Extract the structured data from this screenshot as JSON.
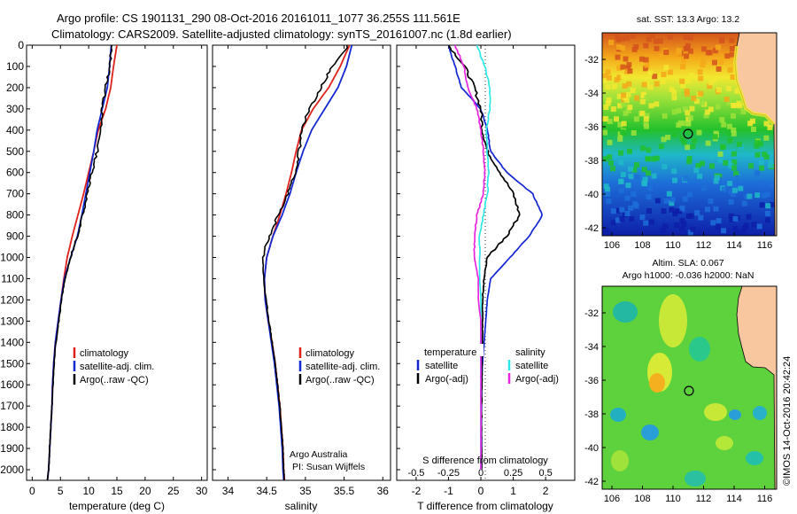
{
  "header": {
    "line1": "Argo profile: CS 1901131_290 08-Oct-2016 20161011_1077 36.255S 111.561E",
    "line2": "Climatology: CARS2009. Satellite-adjusted climatology: synTS_20161007.nc (1.8d earlier)"
  },
  "panel_temp": {
    "xlabel": "temperature (deg C)",
    "xticks": [
      "0",
      "5",
      "10",
      "15",
      "20",
      "25",
      "30"
    ],
    "yticks": [
      "0",
      "100",
      "200",
      "300",
      "400",
      "500",
      "600",
      "700",
      "800",
      "900",
      "1000",
      "1100",
      "1200",
      "1300",
      "1400",
      "1500",
      "1600",
      "1700",
      "1800",
      "1900",
      "2000"
    ],
    "legend": [
      "climatology",
      "satellite-adj. clim.",
      "Argo(..raw -QC)"
    ]
  },
  "panel_sal": {
    "xlabel": "salinity",
    "xticks": [
      "34",
      "34.5",
      "35",
      "35.5",
      "36"
    ],
    "legend": [
      "climatology",
      "satellite-adj. clim.",
      "Argo(..raw -QC)"
    ],
    "credit1": "Argo Australia",
    "credit2": "PI: Susan Wijffels"
  },
  "panel_diff": {
    "xlabel": "T difference from climatology",
    "top_label": "S difference from climatology",
    "sticks": [
      "-0.5",
      "-0.25",
      "0",
      "0.25",
      "0.5"
    ],
    "tticks": [
      "-2",
      "-1",
      "0",
      "1",
      "2"
    ],
    "legend_t_title": "temperature",
    "legend_s_title": "salinity",
    "legend_t": [
      "satellite",
      "Argo(-adj)"
    ],
    "legend_s": [
      "satellite",
      "Argo(-adj)"
    ]
  },
  "map_sst": {
    "title": "sat. SST: 13.3  Argo: 13.2",
    "xticks": [
      "106",
      "108",
      "110",
      "112",
      "114",
      "116"
    ],
    "yticks": [
      "-32",
      "-34",
      "-36",
      "-38",
      "-40",
      "-42"
    ]
  },
  "map_sla": {
    "title1": "Altim. SLA: 0.067",
    "title2": "Argo h1000: -0.036 h2000: NaN",
    "xticks": [
      "106",
      "108",
      "110",
      "112",
      "114",
      "116"
    ],
    "yticks": [
      "-32",
      "-34",
      "-36",
      "-38",
      "-40",
      "-42"
    ]
  },
  "stamp": "©IMOS 14-Oct-2016 20:42:24",
  "colors": {
    "climatology": "#e0201a",
    "satellite": "#1428d2",
    "argo": "#000000",
    "sal_sat": "#2ee8e8",
    "sal_argo": "#e826e0",
    "land": "#f8c7a0"
  },
  "chart_data": [
    {
      "type": "line",
      "xlabel": "temperature (deg C)",
      "ylabel": "",
      "xlim": [
        -1,
        31
      ],
      "ylim": [
        2050,
        0
      ],
      "series": [
        {
          "name": "climatology",
          "x": [
            15,
            14.4,
            13.9,
            13,
            11.7,
            10.9,
            10,
            9.1,
            8.1,
            7.1,
            6.2,
            5.6,
            5.1,
            4.6,
            4.1,
            3.8,
            3.6,
            3.5,
            3.3,
            3.1,
            2.9,
            2.7
          ],
          "y": [
            0,
            100,
            200,
            300,
            400,
            500,
            600,
            700,
            800,
            900,
            1000,
            1100,
            1200,
            1300,
            1400,
            1500,
            1600,
            1700,
            1800,
            1900,
            2000,
            2050
          ]
        },
        {
          "name": "satellite-adj. clim.",
          "x": [
            14,
            13.7,
            13.3,
            12.4,
            11.5,
            10.9,
            10.2,
            9.5,
            8.8,
            8,
            6.8,
            5.7,
            5.1,
            4.6,
            4.1,
            3.8,
            3.6,
            3.5,
            3.3,
            3.1,
            2.9,
            2.7
          ],
          "y": [
            0,
            100,
            200,
            300,
            400,
            500,
            600,
            700,
            800,
            900,
            1000,
            1100,
            1200,
            1300,
            1400,
            1500,
            1600,
            1700,
            1800,
            1900,
            2000,
            2050
          ]
        },
        {
          "name": "Argo(..raw -QC)",
          "x": [
            14,
            13.8,
            13,
            12.4,
            12.1,
            11.5,
            10.6,
            9.8,
            8.9,
            8,
            6.8,
            5.8,
            5.2,
            4.7,
            4.2,
            3.9,
            3.7,
            3.5,
            3.3,
            3.1,
            2.9,
            2.7
          ],
          "y": [
            0,
            100,
            200,
            300,
            400,
            500,
            600,
            700,
            800,
            900,
            1000,
            1100,
            1200,
            1300,
            1400,
            1500,
            1600,
            1700,
            1800,
            1900,
            2000,
            2050
          ]
        }
      ]
    },
    {
      "type": "line",
      "xlabel": "salinity",
      "ylabel": "",
      "xlim": [
        33.8,
        36.1
      ],
      "ylim": [
        2050,
        0
      ],
      "series": [
        {
          "name": "climatology",
          "x": [
            35.57,
            35.45,
            35.3,
            35.1,
            34.95,
            34.88,
            34.82,
            34.75,
            34.67,
            34.58,
            34.5,
            34.47,
            34.48,
            34.52,
            34.57,
            34.61,
            34.64,
            34.67,
            34.69,
            34.71,
            34.72,
            34.73
          ],
          "y": [
            0,
            100,
            200,
            300,
            400,
            500,
            600,
            700,
            800,
            900,
            1000,
            1100,
            1200,
            1300,
            1400,
            1500,
            1600,
            1700,
            1800,
            1900,
            2000,
            2050
          ]
        },
        {
          "name": "satellite-adj. clim.",
          "x": [
            35.6,
            35.53,
            35.42,
            35.25,
            35.08,
            34.97,
            34.88,
            34.8,
            34.7,
            34.58,
            34.5,
            34.47,
            34.48,
            34.52,
            34.56,
            34.6,
            34.63,
            34.66,
            34.68,
            34.7,
            34.71,
            34.72
          ],
          "y": [
            0,
            100,
            200,
            300,
            400,
            500,
            600,
            700,
            800,
            900,
            1000,
            1100,
            1200,
            1300,
            1400,
            1500,
            1600,
            1700,
            1800,
            1900,
            2000,
            2050
          ]
        },
        {
          "name": "Argo(..raw -QC)",
          "x": [
            35.55,
            35.35,
            35.2,
            35.05,
            34.95,
            34.92,
            34.87,
            34.77,
            34.65,
            34.53,
            34.45,
            34.46,
            34.49,
            34.53,
            34.57,
            34.61,
            34.64,
            34.67,
            34.69,
            34.71,
            34.72,
            34.73
          ],
          "y": [
            0,
            100,
            200,
            300,
            400,
            500,
            600,
            700,
            800,
            900,
            1000,
            1100,
            1200,
            1300,
            1400,
            1500,
            1600,
            1700,
            1800,
            1900,
            2000,
            2050
          ]
        }
      ]
    },
    {
      "type": "line",
      "xlabel": "T difference from climatology",
      "ylabel": "",
      "xlim": [
        -2.6,
        2.9
      ],
      "ylim": [
        2050,
        0
      ],
      "series": [
        {
          "name": "temperature satellite",
          "x": [
            -1,
            -0.8,
            -0.6,
            0,
            0.2,
            0.3,
            0.8,
            1.6,
            1.9,
            1.5,
            0.9,
            0.3,
            0.2,
            0.15,
            0.1,
            0.05,
            0.03,
            0.02,
            0.02,
            0.02,
            0.02
          ],
          "y": [
            0,
            100,
            200,
            300,
            400,
            500,
            600,
            700,
            800,
            900,
            1000,
            1100,
            1200,
            1300,
            1400,
            1500,
            1600,
            1700,
            1800,
            1900,
            2000
          ]
        },
        {
          "name": "temperature Argo(-adj)",
          "x": [
            -1,
            -0.5,
            -0.2,
            0,
            0.05,
            0.2,
            0.6,
            1,
            1.2,
            0.8,
            0.2,
            0.1,
            0.05,
            0.05,
            0.05,
            0.03,
            0.03,
            0.02,
            0.02,
            0.02,
            0.02
          ],
          "y": [
            0,
            100,
            200,
            300,
            400,
            500,
            600,
            700,
            800,
            900,
            1000,
            1100,
            1200,
            1300,
            1400,
            1500,
            1600,
            1700,
            1800,
            1900,
            2000
          ]
        },
        {
          "name": "salinity satellite",
          "x": [
            -0.03,
            0.03,
            0.07,
            0.07,
            0.04,
            0.05,
            0.06,
            0.05,
            0.02,
            -0.01,
            -0.01,
            -0.01,
            0,
            0,
            0,
            0,
            0,
            0,
            0,
            0,
            0
          ],
          "y": [
            0,
            100,
            200,
            300,
            400,
            500,
            600,
            700,
            800,
            900,
            1000,
            1100,
            1200,
            1300,
            1400,
            1500,
            1600,
            1700,
            1800,
            1900,
            2000
          ]
        },
        {
          "name": "salinity Argo(-adj)",
          "x": [
            -0.2,
            -0.13,
            -0.1,
            -0.03,
            0,
            0.02,
            0.03,
            0.02,
            -0.03,
            -0.05,
            -0.05,
            -0.02,
            -0.02,
            0,
            0,
            0,
            0,
            0,
            0,
            0,
            0
          ],
          "y": [
            0,
            100,
            200,
            300,
            400,
            500,
            600,
            700,
            800,
            900,
            1000,
            1100,
            1200,
            1300,
            1400,
            1500,
            1600,
            1700,
            1800,
            1900,
            2000
          ]
        }
      ]
    }
  ]
}
